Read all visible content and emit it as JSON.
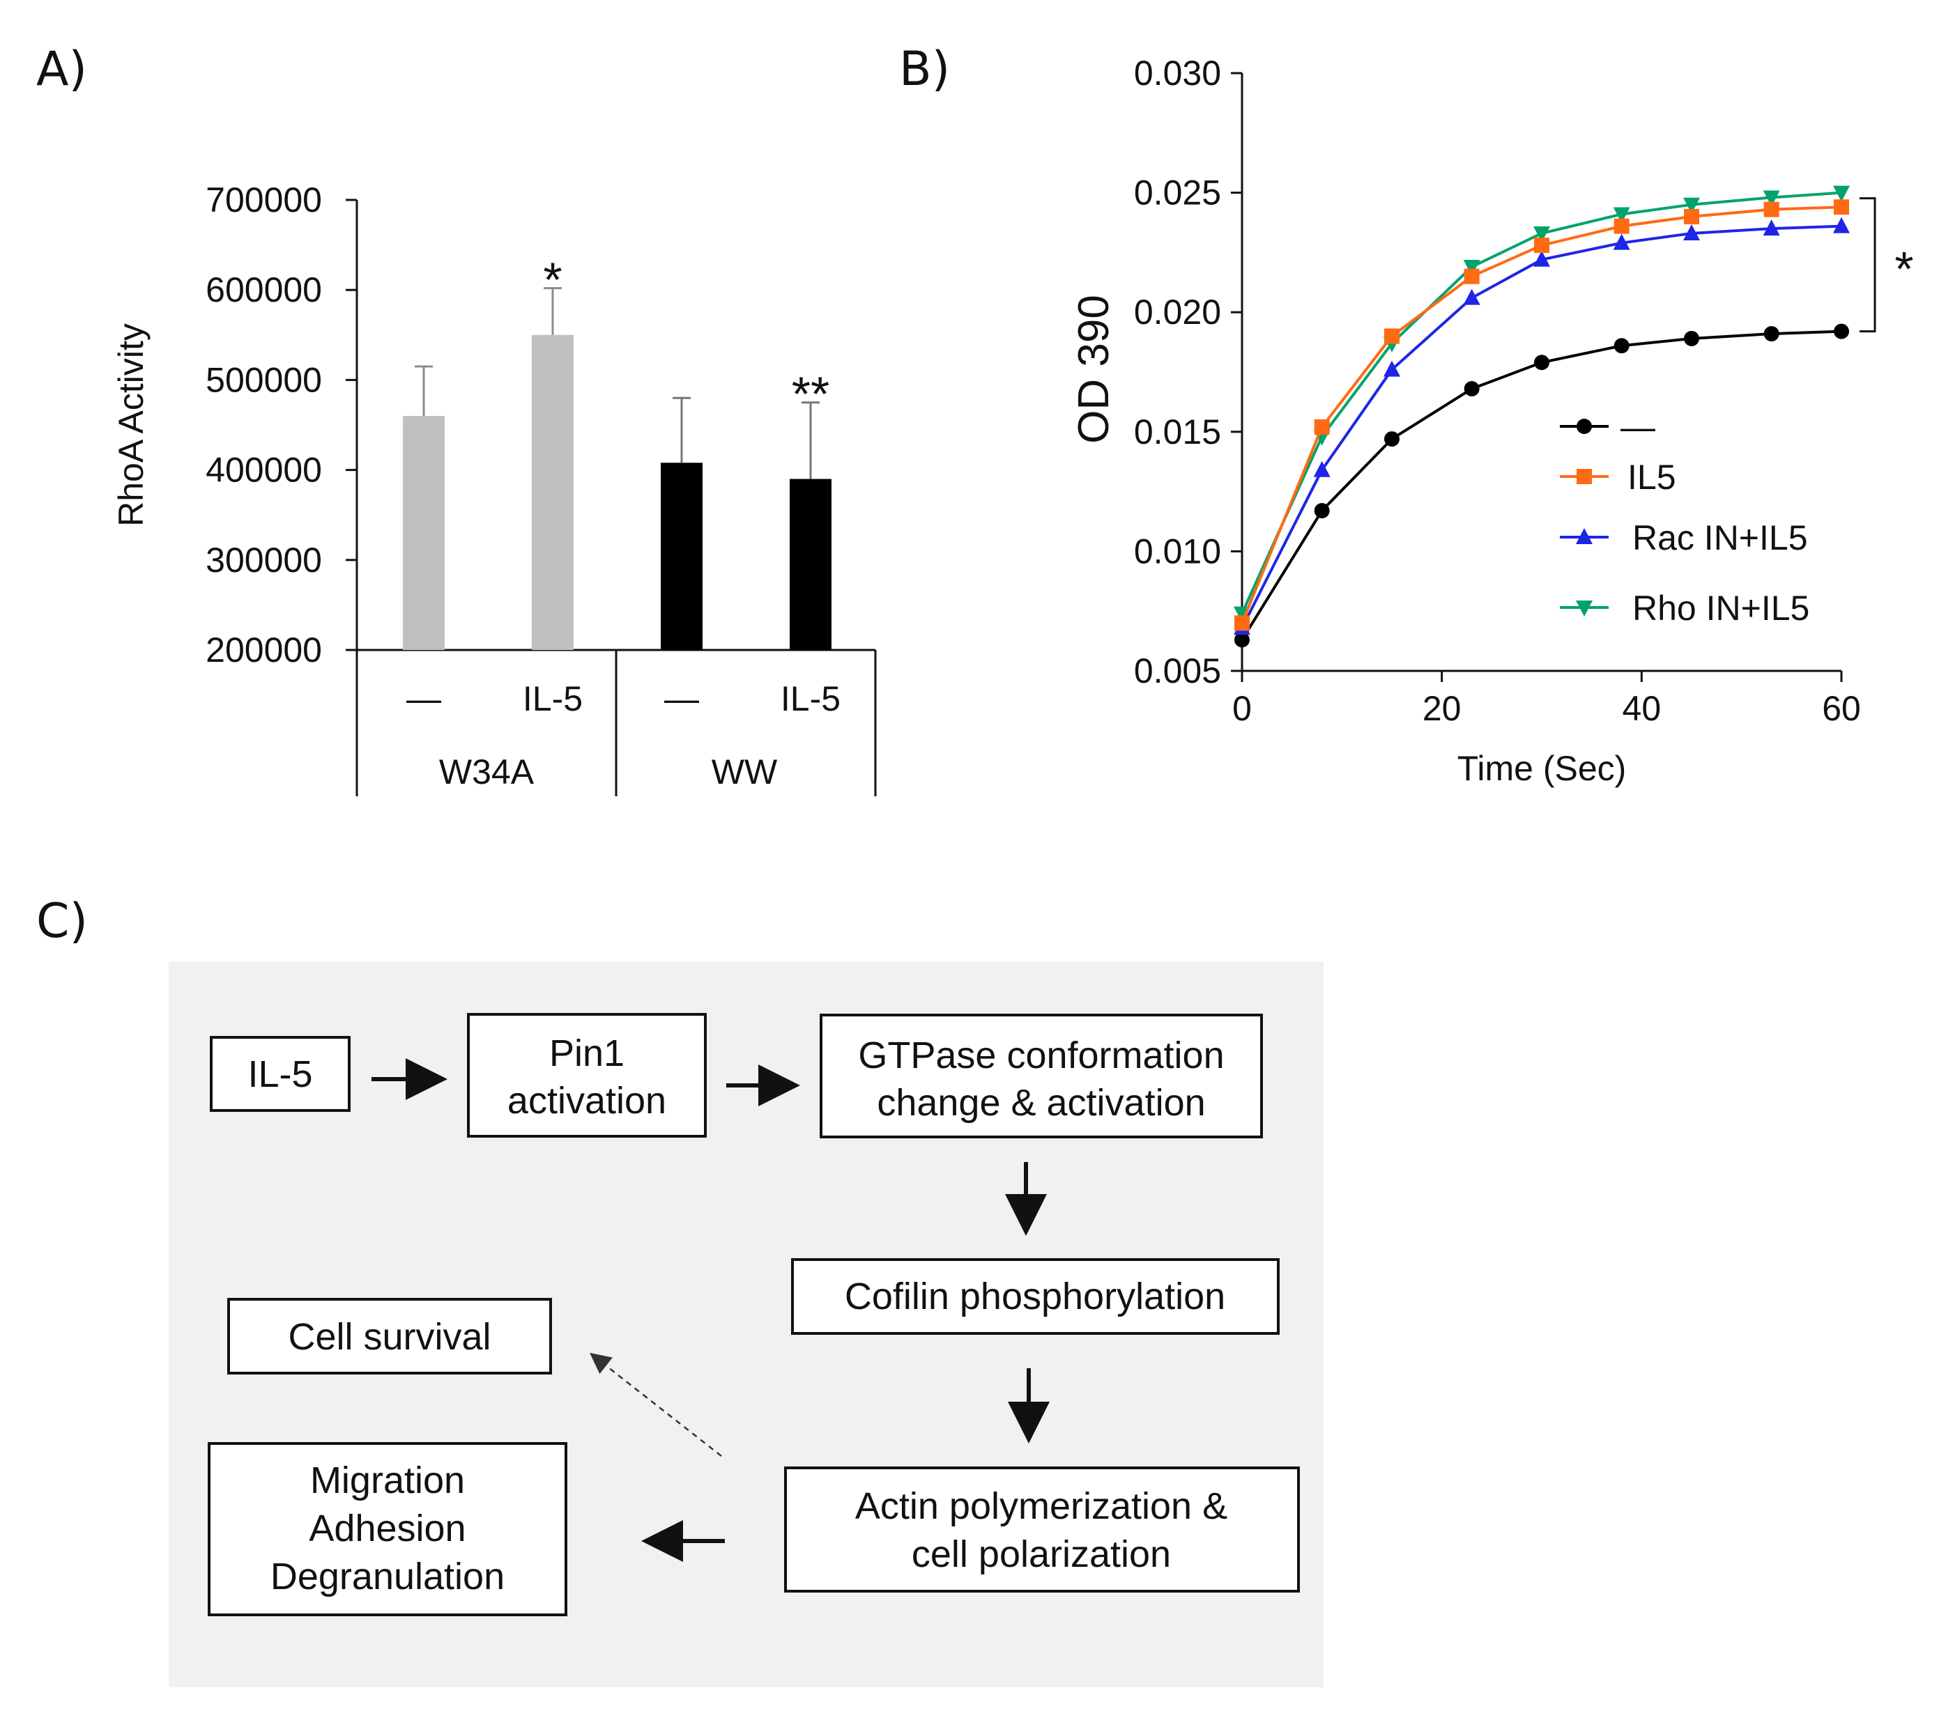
{
  "panels": {
    "a_label": "A)",
    "b_label": "B)",
    "c_label": "C)"
  },
  "chart_data": [
    {
      "type": "bar",
      "panel": "A",
      "title": "",
      "ylabel": "RhoA Activity",
      "ylim": [
        200000,
        700000
      ],
      "yticks": [
        "200000",
        "300000",
        "400000",
        "500000",
        "600000",
        "700000"
      ],
      "yticks_values": [
        200000,
        300000,
        400000,
        500000,
        600000,
        700000
      ],
      "categories": [
        "—",
        "IL-5",
        "—",
        "IL-5"
      ],
      "groups": [
        "W34A",
        "WW"
      ],
      "values": [
        460000,
        550000,
        408000,
        390000
      ],
      "errors": [
        55000,
        52000,
        72000,
        85000
      ],
      "colors": [
        "#c0c0c0",
        "#c0c0c0",
        "#000000",
        "#000000"
      ],
      "annotations": [
        "",
        "*",
        "",
        "**"
      ]
    },
    {
      "type": "line",
      "panel": "B",
      "title": "",
      "xlabel": "Time (Sec)",
      "ylabel": "OD 390",
      "xlim": [
        0,
        60
      ],
      "ylim": [
        0.005,
        0.03
      ],
      "xticks": [
        "0",
        "20",
        "40",
        "60"
      ],
      "xticks_values": [
        0,
        20,
        40,
        60
      ],
      "yticks": [
        "0.005",
        "0.010",
        "0.015",
        "0.020",
        "0.025",
        "0.030"
      ],
      "yticks_values": [
        0.005,
        0.01,
        0.015,
        0.02,
        0.025,
        0.03
      ],
      "x": [
        0,
        8,
        15,
        23,
        30,
        38,
        45,
        53,
        60
      ],
      "series": [
        {
          "name": "—",
          "color": "#000000",
          "marker": "circle",
          "values": [
            0.0063,
            0.0117,
            0.0147,
            0.0168,
            0.0179,
            0.0186,
            0.0189,
            0.0191,
            0.0192
          ]
        },
        {
          "name": "IL5",
          "color": "#ff6a13",
          "marker": "square",
          "values": [
            0.007,
            0.0152,
            0.019,
            0.0215,
            0.0228,
            0.0236,
            0.024,
            0.0243,
            0.0244
          ]
        },
        {
          "name": "Rac IN+IL5",
          "color": "#1f25e6",
          "marker": "triangle-up",
          "values": [
            0.0068,
            0.0134,
            0.0176,
            0.0206,
            0.0222,
            0.0229,
            0.0233,
            0.0235,
            0.0236
          ]
        },
        {
          "name": "Rho IN+IL5",
          "color": "#00a36c",
          "marker": "triangle-down",
          "values": [
            0.0074,
            0.0148,
            0.0187,
            0.0219,
            0.0233,
            0.0241,
            0.0245,
            0.0248,
            0.025
          ]
        }
      ],
      "annotation": "*"
    }
  ],
  "diagram": {
    "nodes": {
      "il5": [
        "IL-5"
      ],
      "pin1": [
        "Pin1",
        "activation"
      ],
      "gtpase": [
        "GTPase conformation",
        "change & activation"
      ],
      "cofilin": [
        "Cofilin phosphorylation"
      ],
      "actin": [
        "Actin polymerization &",
        "cell polarization"
      ],
      "survival": [
        "Cell survival"
      ],
      "migration": [
        "Migration",
        "Adhesion",
        "Degranulation"
      ]
    }
  }
}
